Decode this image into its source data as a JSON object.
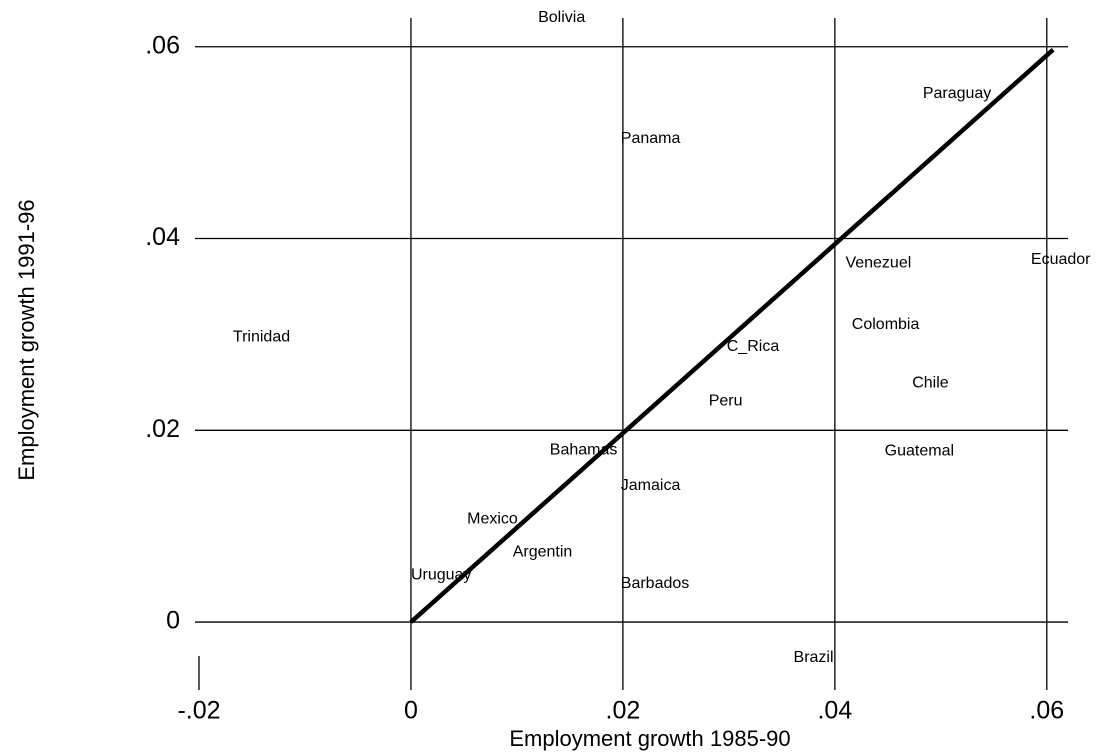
{
  "chart_data": {
    "type": "scatter",
    "x_label": "Employment growth 1985-90",
    "y_label": "Employment growth 1991-96",
    "labels": [
      "Bolivia",
      "Panama",
      "Paraguay",
      "Ecuador",
      "Venezuel",
      "Colombia",
      "Chile",
      "Guatemal",
      "C_Rica",
      "Peru",
      "Trinidad",
      "Bahamas",
      "Jamaica",
      "Mexico",
      "Argentin",
      "Uruguay",
      "Barbados",
      "Brazil"
    ],
    "x": [
      0.012,
      0.0198,
      0.0483,
      0.0585,
      0.041,
      0.0416,
      0.0473,
      0.0447,
      0.0298,
      0.0281,
      -0.0168,
      0.0131,
      0.0198,
      0.0053,
      0.0096,
      0.0,
      0.0198,
      0.0361
    ],
    "y": [
      0.063,
      0.0504,
      0.0551,
      0.0378,
      0.0374,
      0.031,
      0.0249,
      0.0178,
      0.0287,
      0.023,
      0.0297,
      0.0179,
      0.0142,
      0.0107,
      0.0073,
      0.0049,
      0.004,
      -0.0037
    ],
    "fit_line": {
      "x": [
        0,
        0.0606
      ],
      "y": [
        0,
        0.0597
      ]
    },
    "xlim": [
      -0.02,
      0.062
    ],
    "ylim": [
      -0.005,
      0.063
    ],
    "xticks": [
      {
        "value": -0.02,
        "label": "-.02"
      },
      0,
      {
        "value": 0.02,
        "label": ".02"
      },
      {
        "value": 0.04,
        "label": ".04"
      },
      {
        "value": 0.06,
        "label": ".06"
      }
    ],
    "yticks": [
      0,
      {
        "value": 0.02,
        "label": ".02"
      },
      {
        "value": 0.04,
        "label": ".04"
      },
      {
        "value": 0.06,
        "label": ".06"
      }
    ],
    "grid": true
  }
}
